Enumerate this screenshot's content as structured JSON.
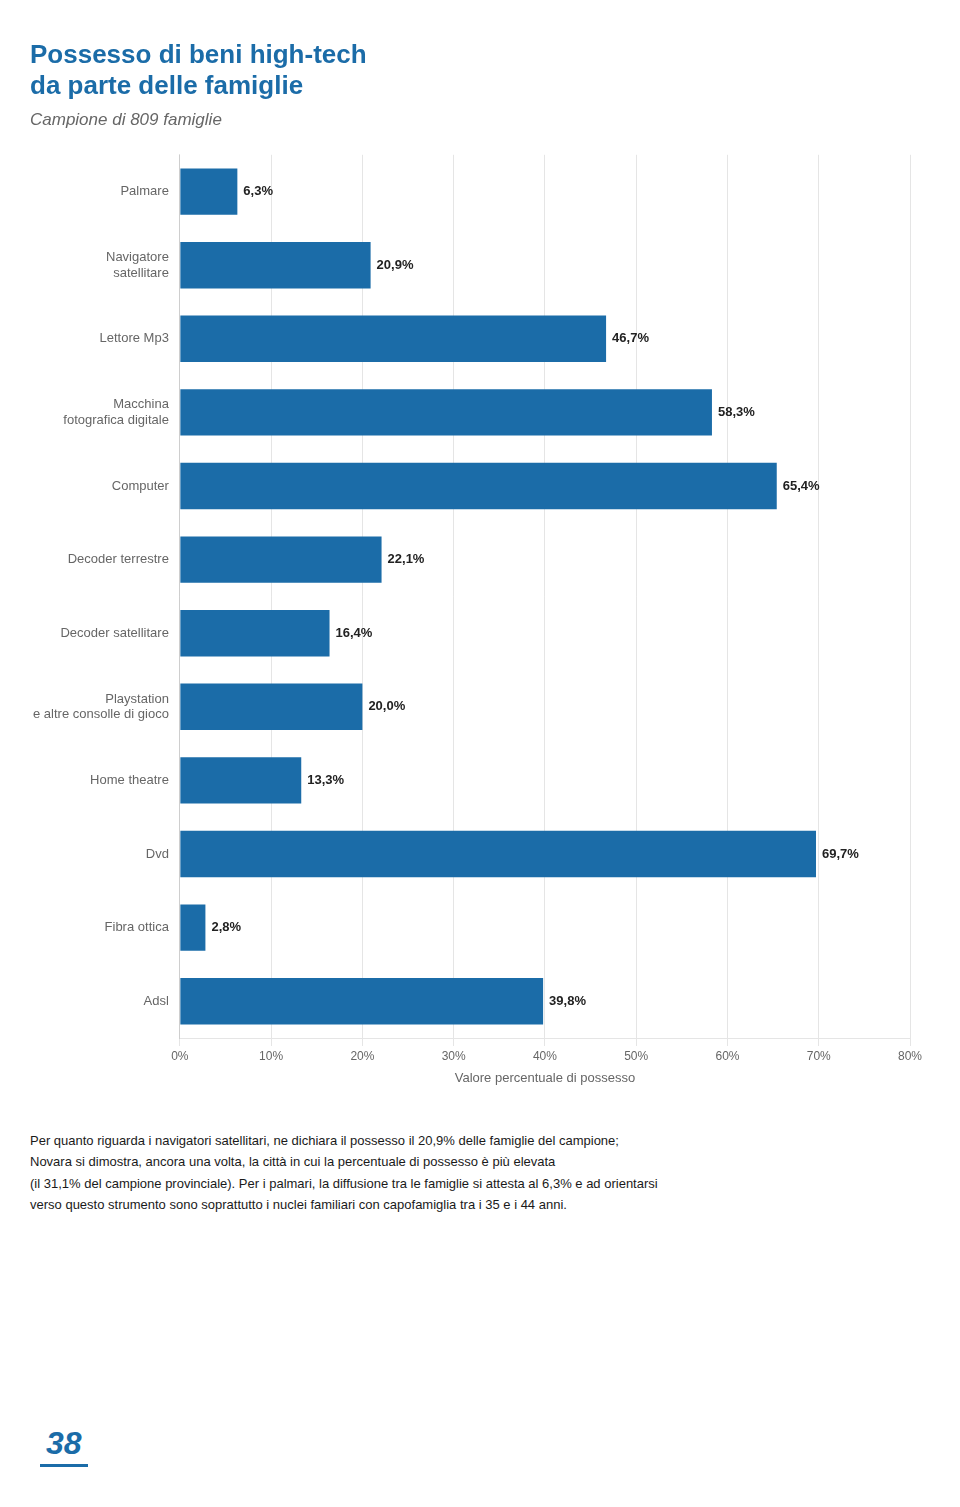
{
  "chart_data": {
    "type": "bar",
    "orientation": "horizontal",
    "title": [
      "Possesso di beni high-tech",
      "da parte delle famiglie"
    ],
    "subtitle": "Campione di 809 famiglie",
    "categories": [
      "Palmare",
      "Navigatore\nsatellitare",
      "Lettore Mp3",
      "Macchina\nfotografica digitale",
      "Computer",
      "Decoder terrestre",
      "Decoder satellitare",
      "Playstation\ne altre consolle di gioco",
      "Home theatre",
      "Dvd",
      "Fibra ottica",
      "Adsl"
    ],
    "values": [
      6.3,
      20.9,
      46.7,
      58.3,
      65.4,
      22.1,
      16.4,
      20.0,
      13.3,
      69.7,
      2.8,
      39.8
    ],
    "value_labels": [
      "6,3%",
      "20,9%",
      "46,7%",
      "58,3%",
      "65,4%",
      "22,1%",
      "16,4%",
      "20,0%",
      "13,3%",
      "69,7%",
      "2,8%",
      "39,8%"
    ],
    "data_labels": true,
    "color": "#1B6CA8",
    "xlabel": "Valore percentuale di possesso",
    "xlim": [
      0,
      80
    ],
    "xticks": [
      {
        "value": 0,
        "label": "0%"
      },
      {
        "value": 10,
        "label": "10%"
      },
      {
        "value": 20,
        "label": "20%"
      },
      {
        "value": 30,
        "label": "30%"
      },
      {
        "value": 40,
        "label": "40%"
      },
      {
        "value": 50,
        "label": "50%"
      },
      {
        "value": 60,
        "label": "60%"
      },
      {
        "value": 70,
        "label": "70%"
      },
      {
        "value": 80,
        "label": "80%"
      }
    ],
    "grid": true,
    "annotations": [
      {
        "text": "Per quanto riguarda i navigatori satellitari, ne dichiara il possesso il 20,9% delle famiglie del campione;\nNovara si dimostra, ancora una volta, la città in cui la percentuale di possesso è più elevata\n(il 31,1% del campione provinciale). Per i palmari, la diffusione tra le famiglie si attesta al 6,3% e ad orientarsi\nverso questo strumento sono soprattutto i nuclei familiari con capofamiglia tra i 35 e i 44 anni."
      },
      {
        "text": "38",
        "color": "#1B6CA8"
      }
    ]
  }
}
